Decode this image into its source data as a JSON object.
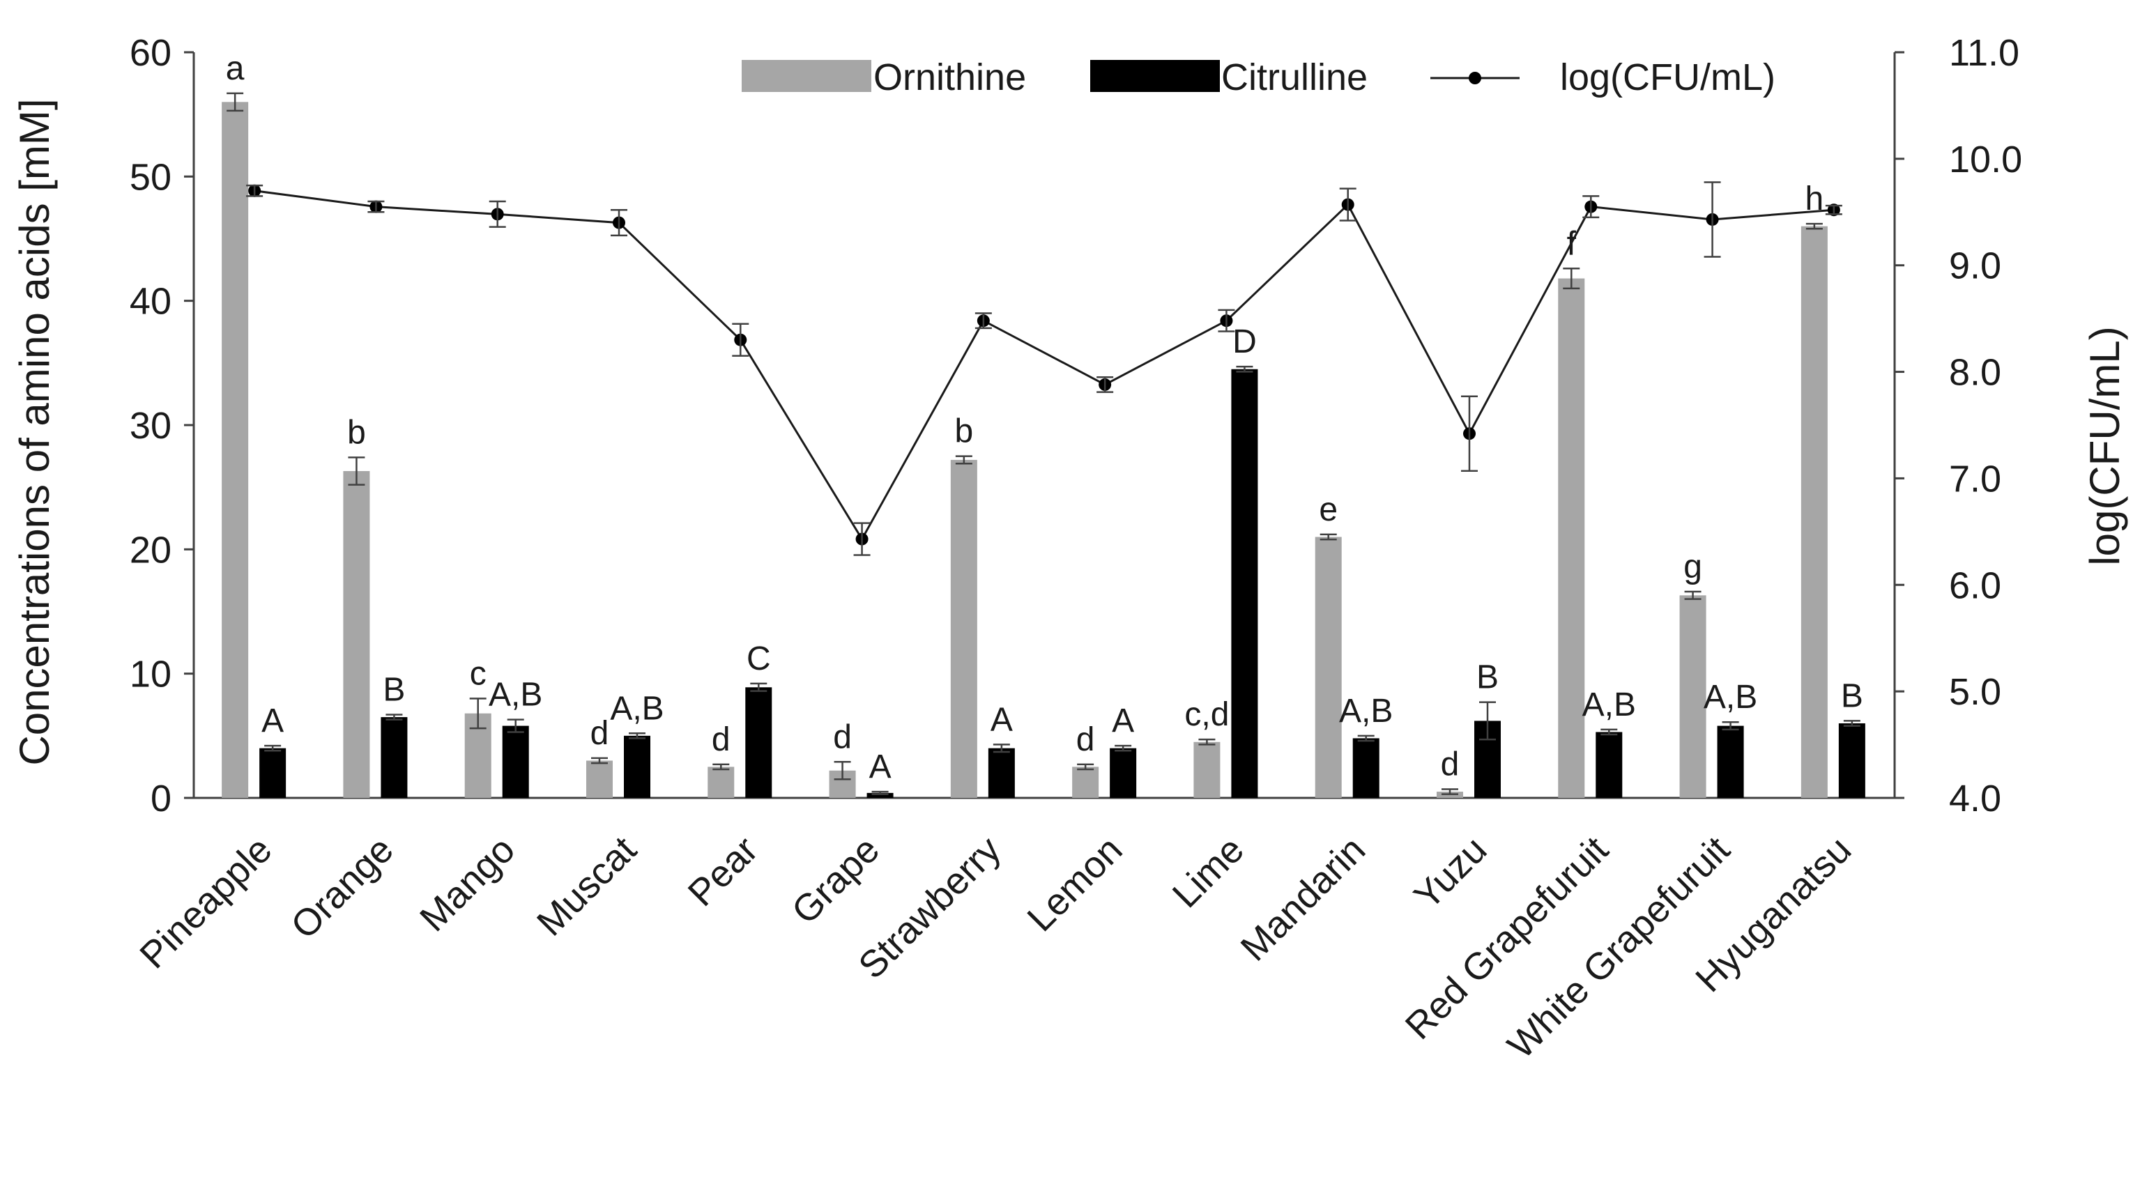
{
  "chart_data": {
    "type": "bar",
    "title": "",
    "categories": [
      "Pineapple",
      "Orange",
      "Mango",
      "Muscat",
      "Pear",
      "Grape",
      "Strawberry",
      "Lemon",
      "Lime",
      "Mandarin",
      "Yuzu",
      "Red Grapefuruit",
      "White Grapefuruit",
      "Hyuganatsu"
    ],
    "xlabel": "",
    "ylabel": "Concentrations of amino acids [mM]",
    "ylim": [
      0,
      60
    ],
    "yticks": [
      "0",
      "10",
      "20",
      "30",
      "40",
      "50",
      "60"
    ],
    "y2label": "log(CFU/mL)",
    "y2lim": [
      4.0,
      11.0
    ],
    "y2ticks": [
      "4.0",
      "5.0",
      "6.0",
      "7.0",
      "8.0",
      "9.0",
      "10.0",
      "11.0"
    ],
    "legend_position": "top-right",
    "series": [
      {
        "name": "Ornithine",
        "kind": "bar",
        "axis": "left",
        "color": "#a6a6a6",
        "values": [
          56.0,
          26.3,
          6.8,
          3.0,
          2.5,
          2.2,
          27.2,
          2.5,
          4.5,
          21.0,
          0.5,
          41.8,
          16.3,
          46.0
        ],
        "errors": [
          0.7,
          1.1,
          1.2,
          0.2,
          0.2,
          0.7,
          0.3,
          0.2,
          0.2,
          0.2,
          0.2,
          0.8,
          0.3,
          0.2
        ],
        "significance": [
          "a",
          "b",
          "c",
          "d",
          "d",
          "d",
          "b",
          "d",
          "c,d",
          "e",
          "d",
          "f",
          "g",
          "h"
        ]
      },
      {
        "name": "Citrulline",
        "kind": "bar",
        "axis": "left",
        "color": "#000000",
        "values": [
          4.0,
          6.5,
          5.8,
          5.0,
          8.9,
          0.4,
          4.0,
          4.0,
          34.5,
          4.8,
          6.2,
          5.3,
          5.8,
          6.0
        ],
        "errors": [
          0.2,
          0.2,
          0.5,
          0.2,
          0.3,
          0.1,
          0.3,
          0.2,
          0.2,
          0.2,
          1.5,
          0.2,
          0.3,
          0.2
        ],
        "significance": [
          "A",
          "B",
          "A,B",
          "A,B",
          "C",
          "A",
          "A",
          "A",
          "D",
          "A,B",
          "B",
          "A,B",
          "A,B",
          "B"
        ]
      },
      {
        "name": "log(CFU/mL)",
        "kind": "line",
        "axis": "right",
        "color": "#000000",
        "values": [
          9.7,
          9.55,
          9.48,
          9.4,
          8.3,
          6.43,
          8.48,
          7.88,
          8.48,
          9.57,
          7.42,
          9.55,
          9.43,
          9.52
        ],
        "errors": [
          0.05,
          0.05,
          0.12,
          0.12,
          0.15,
          0.15,
          0.07,
          0.07,
          0.1,
          0.15,
          0.35,
          0.1,
          0.35,
          0.04
        ]
      }
    ]
  }
}
